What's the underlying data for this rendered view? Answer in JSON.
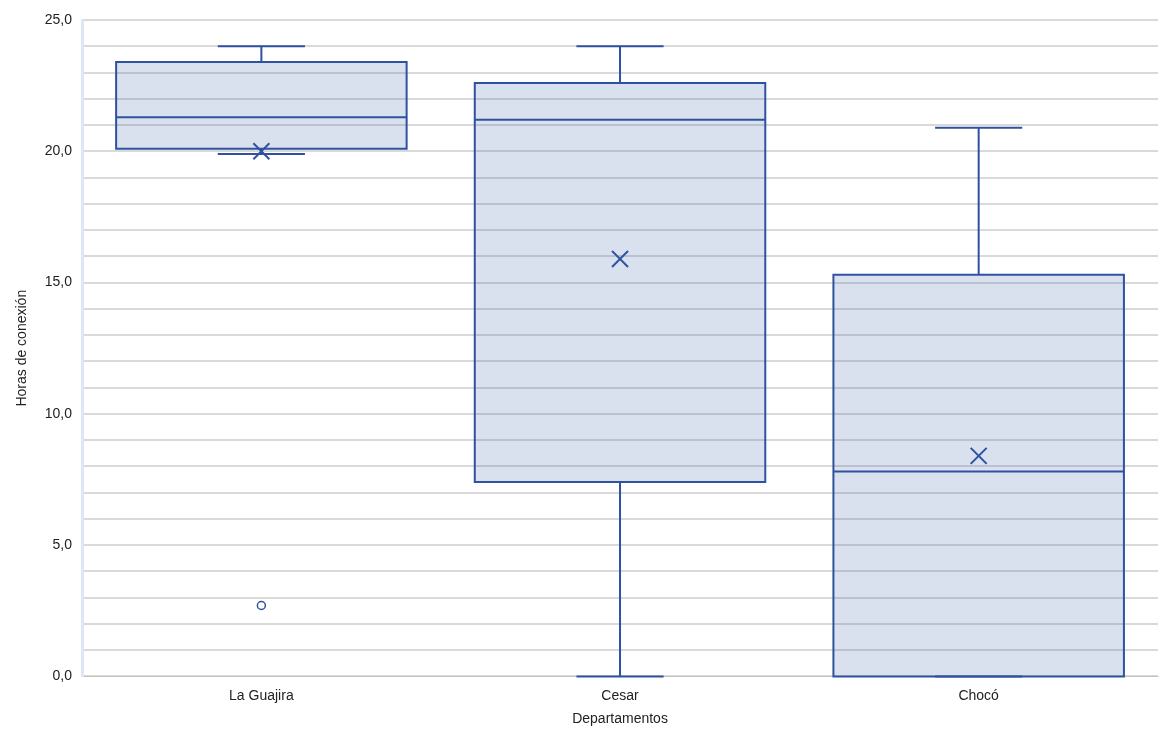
{
  "chart_data": {
    "type": "box",
    "xlabel": "Departamentos",
    "ylabel": "Horas de conexión",
    "categories": [
      "La Guajira",
      "Cesar",
      "Chocó"
    ],
    "boxes": [
      {
        "low": 19.9,
        "q1": 20.1,
        "median": 21.3,
        "q3": 23.4,
        "high": 24.0,
        "mean": 20.0,
        "outliers": [
          2.7
        ]
      },
      {
        "low": 0,
        "q1": 7.4,
        "median": 21.2,
        "q3": 22.6,
        "high": 24.0,
        "mean": 15.9
      },
      {
        "low": 0,
        "q1": 0,
        "median": 7.8,
        "q3": 15.3,
        "high": 20.9,
        "mean": 8.4
      }
    ],
    "color": "#2f52a0",
    "ylim": [
      0,
      25
    ],
    "yticks": [
      {
        "value": 0,
        "label": "0,0"
      },
      {
        "value": 1,
        "label": null
      },
      {
        "value": 2,
        "label": null
      },
      {
        "value": 3,
        "label": null
      },
      {
        "value": 4,
        "label": null
      },
      {
        "value": 5,
        "label": "5,0"
      },
      {
        "value": 6,
        "label": null
      },
      {
        "value": 7,
        "label": null
      },
      {
        "value": 8,
        "label": null
      },
      {
        "value": 9,
        "label": null
      },
      {
        "value": 10,
        "label": "10,0"
      },
      {
        "value": 11,
        "label": null
      },
      {
        "value": 12,
        "label": null
      },
      {
        "value": 13,
        "label": null
      },
      {
        "value": 14,
        "label": null
      },
      {
        "value": 15,
        "label": "15,0"
      },
      {
        "value": 16,
        "label": null
      },
      {
        "value": 17,
        "label": null
      },
      {
        "value": 18,
        "label": null
      },
      {
        "value": 19,
        "label": null
      },
      {
        "value": 20,
        "label": "20,0"
      },
      {
        "value": 21,
        "label": null
      },
      {
        "value": 22,
        "label": null
      },
      {
        "value": 23,
        "label": null
      },
      {
        "value": 24,
        "label": null
      },
      {
        "value": 25,
        "label": "25,0"
      }
    ],
    "grid": "y",
    "legend": false,
    "marker": "cross"
  }
}
